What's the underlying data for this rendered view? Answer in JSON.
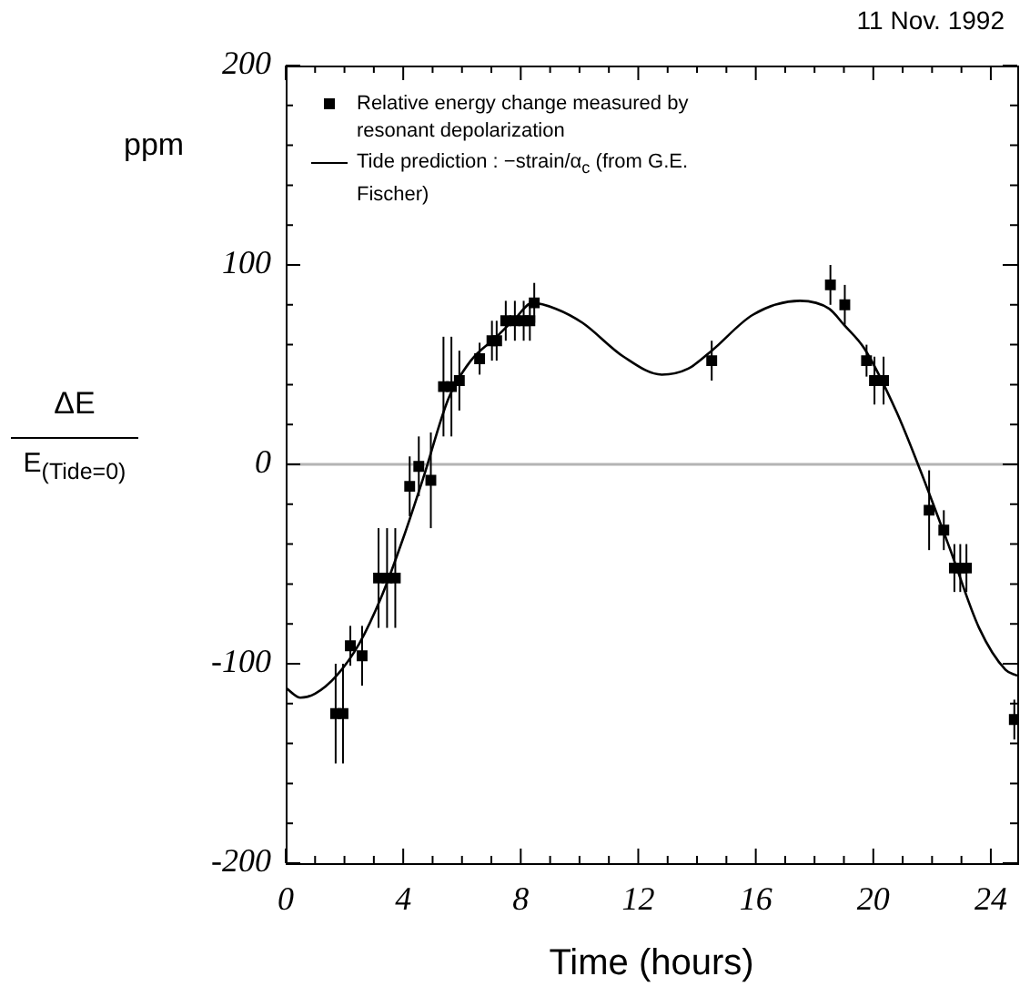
{
  "chart_data": {
    "type": "scatter",
    "title": "11 Nov. 1992",
    "xlabel": "Time (hours)",
    "ylabel": "ppm",
    "annotations": [
      "ΔE",
      "E$_{(Tide=0)}$"
    ],
    "xlim": [
      0,
      24.9
    ],
    "ylim": [
      -200,
      200
    ],
    "xticks": [
      0,
      {
        "value": 1,
        "label": null
      },
      {
        "value": 2,
        "label": null
      },
      {
        "value": 3,
        "label": null
      },
      4,
      {
        "value": 5,
        "label": null
      },
      {
        "value": 6,
        "label": null
      },
      {
        "value": 7,
        "label": null
      },
      8,
      {
        "value": 9,
        "label": null
      },
      {
        "value": 10,
        "label": null
      },
      {
        "value": 11,
        "label": null
      },
      12,
      {
        "value": 13,
        "label": null
      },
      {
        "value": 14,
        "label": null
      },
      {
        "value": 15,
        "label": null
      },
      16,
      {
        "value": 17,
        "label": null
      },
      {
        "value": 18,
        "label": null
      },
      {
        "value": 19,
        "label": null
      },
      20,
      {
        "value": 21,
        "label": null
      },
      {
        "value": 22,
        "label": null
      },
      {
        "value": 23,
        "label": null
      },
      24
    ],
    "yticks": [
      -200,
      {
        "value": -180,
        "label": null
      },
      {
        "value": -160,
        "label": null
      },
      {
        "value": -140,
        "label": null
      },
      {
        "value": -120,
        "label": null
      },
      -100,
      {
        "value": -80,
        "label": null
      },
      {
        "value": -60,
        "label": null
      },
      {
        "value": -40,
        "label": null
      },
      {
        "value": -20,
        "label": null
      },
      0,
      {
        "value": 20,
        "label": null
      },
      {
        "value": 40,
        "label": null
      },
      {
        "value": 60,
        "label": null
      },
      {
        "value": 80,
        "label": null
      },
      100,
      {
        "value": 120,
        "label": null
      },
      {
        "value": 140,
        "label": null
      },
      {
        "value": 160,
        "label": null
      },
      {
        "value": 180,
        "label": null
      },
      200
    ],
    "legend": "top left",
    "ref_lines": [
      {
        "axis": "y",
        "value": 0,
        "color": "#b4b4b4"
      }
    ],
    "series": [
      {
        "type": "scatter",
        "name": "Relative energy change measured by resonant depolarization",
        "color": "#000000",
        "marker": "square",
        "x": [
          1.7,
          1.95,
          2.2,
          2.6,
          3.16,
          3.45,
          3.73,
          4.22,
          4.53,
          4.94,
          5.37,
          5.64,
          5.91,
          6.6,
          7.02,
          7.18,
          7.49,
          7.8,
          8.1,
          8.31,
          8.46,
          14.5,
          18.54,
          19.03,
          19.77,
          20.04,
          20.35,
          21.9,
          22.4,
          22.76,
          22.96,
          23.17,
          24.8
        ],
        "values": [
          -125,
          -125,
          -91,
          -96,
          -57,
          -57,
          -57,
          -11,
          -1,
          -8,
          39,
          39,
          42,
          53,
          62,
          62,
          72,
          72,
          72,
          72,
          81,
          52,
          90,
          80,
          52,
          42,
          42,
          -23,
          -33,
          -52,
          -52,
          -52,
          -128
        ],
        "errors": [
          25,
          25,
          10,
          15,
          25,
          25,
          25,
          15,
          15,
          24,
          25,
          25,
          15,
          8,
          10,
          10,
          10,
          10,
          10,
          10,
          10,
          10,
          10,
          10,
          8,
          12,
          12,
          20,
          10,
          12,
          12,
          12,
          10
        ]
      },
      {
        "type": "line",
        "name": "Tide prediction : −strain/α$_{c}$ (from G.E. Fischer)",
        "color": "#000000",
        "marker": "none",
        "line_style": "solid",
        "x": [
          0,
          0.5,
          1.0,
          1.73,
          2.5,
          3.27,
          4.0,
          4.7,
          5.54,
          6.3,
          7.18,
          7.8,
          8.4,
          9.2,
          10.1,
          11.5,
          12.8,
          13.7,
          14.5,
          15.9,
          17.5,
          18.5,
          19.0,
          19.7,
          20.8,
          21.6,
          22.6,
          23.6,
          24.5,
          24.9
        ],
        "values": [
          -112,
          -117,
          -115,
          -106,
          -90,
          -66,
          -37,
          -6,
          33,
          52,
          64,
          73,
          81,
          78,
          71,
          54,
          45,
          48,
          57,
          75,
          82,
          78,
          70,
          58,
          26,
          -3,
          -42,
          -82,
          -103,
          -106
        ]
      }
    ]
  }
}
